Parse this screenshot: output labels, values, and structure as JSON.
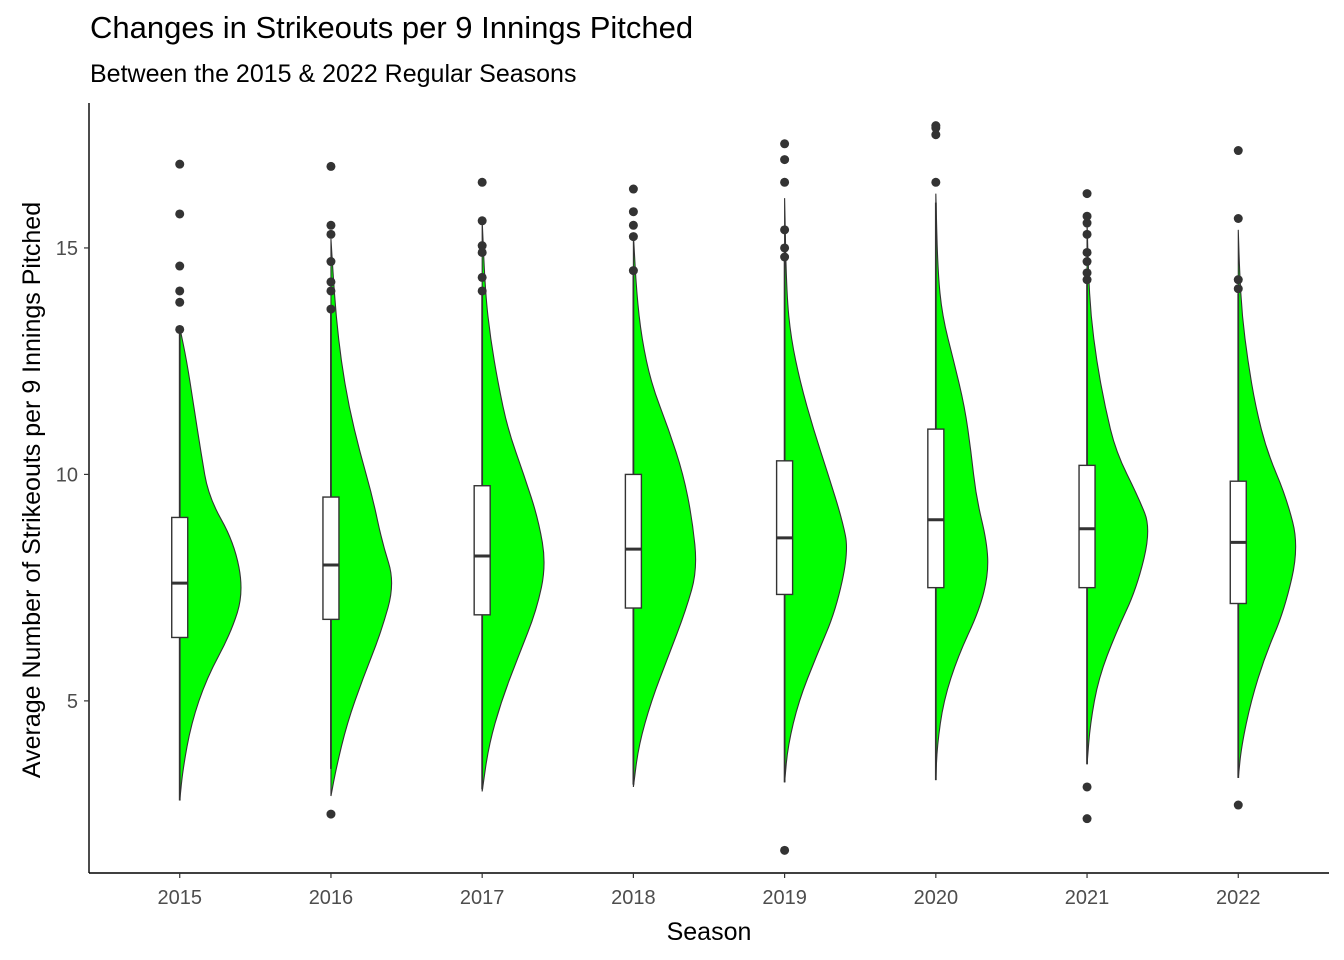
{
  "chart_data": {
    "type": "violin",
    "title": "Changes in Strikeouts per 9 Innings Pitched",
    "subtitle": "Between the 2015 & 2022 Regular Seasons",
    "xlabel": "Season",
    "ylabel": "Average Number of Strikeouts per 9 Innings Pitched",
    "ylim": [
      1.2,
      18.2
    ],
    "y_ticks": [
      5,
      10,
      15
    ],
    "categories": [
      "2015",
      "2016",
      "2017",
      "2018",
      "2019",
      "2020",
      "2021",
      "2022"
    ],
    "fill_color": "#00ff00",
    "box_fill": "#ffffff",
    "grid": false,
    "boxes": [
      {
        "season": "2015",
        "lower": 2.8,
        "q1": 6.4,
        "median": 7.6,
        "q3": 9.05,
        "upper": 13.2,
        "outliers": [
          13.2,
          13.8,
          14.05,
          14.6,
          15.75,
          16.85
        ]
      },
      {
        "season": "2016",
        "lower": 3.5,
        "q1": 6.8,
        "median": 8.0,
        "q3": 9.5,
        "upper": 13.6,
        "outliers": [
          2.5,
          13.65,
          14.05,
          14.25,
          14.7,
          15.3,
          15.5,
          16.8
        ]
      },
      {
        "season": "2017",
        "lower": 3.05,
        "q1": 6.9,
        "median": 8.2,
        "q3": 9.75,
        "upper": 14.0,
        "outliers": [
          14.05,
          14.35,
          14.9,
          15.05,
          15.6,
          16.45
        ]
      },
      {
        "season": "2018",
        "lower": 3.15,
        "q1": 7.05,
        "median": 8.35,
        "q3": 10.0,
        "upper": 14.5,
        "outliers": [
          14.5,
          15.25,
          15.5,
          15.8,
          16.3
        ]
      },
      {
        "season": "2019",
        "lower": 3.2,
        "q1": 7.35,
        "median": 8.6,
        "q3": 10.3,
        "upper": 14.8,
        "outliers": [
          1.7,
          14.8,
          15.0,
          15.4,
          16.45,
          16.95,
          17.3
        ]
      },
      {
        "season": "2020",
        "lower": 3.25,
        "q1": 7.5,
        "median": 9.0,
        "q3": 11.0,
        "upper": 16.0,
        "outliers": [
          16.45,
          17.5,
          17.65,
          17.7
        ]
      },
      {
        "season": "2021",
        "lower": 3.6,
        "q1": 7.5,
        "median": 8.8,
        "q3": 10.2,
        "upper": 14.3,
        "outliers": [
          2.4,
          3.1,
          14.3,
          14.45,
          14.7,
          14.9,
          15.3,
          15.55,
          15.7,
          16.2
        ]
      },
      {
        "season": "2022",
        "lower": 3.3,
        "q1": 7.15,
        "median": 8.5,
        "q3": 9.85,
        "upper": 14.0,
        "outliers": [
          2.7,
          14.1,
          14.3,
          15.65,
          17.15
        ]
      }
    ],
    "violins": [
      {
        "season": "2015",
        "min": 2.8,
        "max": 13.25,
        "peak": 7.4,
        "tails": [
          [
            2.8,
            0.0
          ],
          [
            3.5,
            0.05
          ],
          [
            4.5,
            0.18
          ],
          [
            5.5,
            0.42
          ],
          [
            6.5,
            0.8
          ],
          [
            7.4,
            1.0
          ],
          [
            8.5,
            0.85
          ],
          [
            9.5,
            0.45
          ],
          [
            10.5,
            0.33
          ],
          [
            11.5,
            0.22
          ],
          [
            12.5,
            0.11
          ],
          [
            13.25,
            0.0
          ]
        ]
      },
      {
        "season": "2016",
        "min": 2.9,
        "max": 15.2,
        "peak": 7.6,
        "tails": [
          [
            2.9,
            0.0
          ],
          [
            3.5,
            0.08
          ],
          [
            4.5,
            0.25
          ],
          [
            5.5,
            0.5
          ],
          [
            6.5,
            0.78
          ],
          [
            7.6,
            1.0
          ],
          [
            8.5,
            0.8
          ],
          [
            9.5,
            0.65
          ],
          [
            10.5,
            0.45
          ],
          [
            11.5,
            0.28
          ],
          [
            12.5,
            0.16
          ],
          [
            13.5,
            0.08
          ],
          [
            14.5,
            0.03
          ],
          [
            15.2,
            0.0
          ]
        ]
      },
      {
        "season": "2017",
        "min": 3.0,
        "max": 15.6,
        "peak": 8.0,
        "tails": [
          [
            3.0,
            0.0
          ],
          [
            4.0,
            0.1
          ],
          [
            5.0,
            0.3
          ],
          [
            6.0,
            0.57
          ],
          [
            7.0,
            0.85
          ],
          [
            8.0,
            1.0
          ],
          [
            9.0,
            0.88
          ],
          [
            10.0,
            0.65
          ],
          [
            11.0,
            0.4
          ],
          [
            12.0,
            0.25
          ],
          [
            13.0,
            0.13
          ],
          [
            14.0,
            0.05
          ],
          [
            15.6,
            0.0
          ]
        ]
      },
      {
        "season": "2018",
        "min": 3.1,
        "max": 15.3,
        "peak": 7.9,
        "tails": [
          [
            3.1,
            0.0
          ],
          [
            4.0,
            0.08
          ],
          [
            5.0,
            0.28
          ],
          [
            6.0,
            0.55
          ],
          [
            7.0,
            0.82
          ],
          [
            7.9,
            1.0
          ],
          [
            9.0,
            0.92
          ],
          [
            10.0,
            0.78
          ],
          [
            11.0,
            0.55
          ],
          [
            12.0,
            0.28
          ],
          [
            13.0,
            0.13
          ],
          [
            14.0,
            0.05
          ],
          [
            15.3,
            0.0
          ]
        ]
      },
      {
        "season": "2019",
        "min": 3.2,
        "max": 16.1,
        "peak": 8.3,
        "tails": [
          [
            3.2,
            0.0
          ],
          [
            4.0,
            0.05
          ],
          [
            5.0,
            0.22
          ],
          [
            6.0,
            0.5
          ],
          [
            7.0,
            0.8
          ],
          [
            8.3,
            1.0
          ],
          [
            9.0,
            0.9
          ],
          [
            10.0,
            0.68
          ],
          [
            11.0,
            0.45
          ],
          [
            12.0,
            0.25
          ],
          [
            13.0,
            0.1
          ],
          [
            14.0,
            0.03
          ],
          [
            16.1,
            0.0
          ]
        ]
      },
      {
        "season": "2020",
        "min": 3.25,
        "max": 16.2,
        "peak": 7.8,
        "tails": [
          [
            3.25,
            0.0
          ],
          [
            4.0,
            0.02
          ],
          [
            5.0,
            0.12
          ],
          [
            6.0,
            0.35
          ],
          [
            7.0,
            0.68
          ],
          [
            7.8,
            0.82
          ],
          [
            8.5,
            0.8
          ],
          [
            9.5,
            0.63
          ],
          [
            10.5,
            0.55
          ],
          [
            11.5,
            0.45
          ],
          [
            12.5,
            0.28
          ],
          [
            13.5,
            0.1
          ],
          [
            14.5,
            0.03
          ],
          [
            16.2,
            0.0
          ]
        ]
      },
      {
        "season": "2021",
        "min": 3.6,
        "max": 15.6,
        "peak": 8.8,
        "tails": [
          [
            3.6,
            0.0
          ],
          [
            4.5,
            0.05
          ],
          [
            5.5,
            0.18
          ],
          [
            6.5,
            0.45
          ],
          [
            7.5,
            0.78
          ],
          [
            8.8,
            1.0
          ],
          [
            9.5,
            0.8
          ],
          [
            10.5,
            0.45
          ],
          [
            11.5,
            0.28
          ],
          [
            12.5,
            0.15
          ],
          [
            13.5,
            0.06
          ],
          [
            14.5,
            0.02
          ],
          [
            15.6,
            0.0
          ]
        ]
      },
      {
        "season": "2022",
        "min": 3.3,
        "max": 15.4,
        "peak": 8.4,
        "tails": [
          [
            3.3,
            0.0
          ],
          [
            4.0,
            0.05
          ],
          [
            5.0,
            0.2
          ],
          [
            6.0,
            0.42
          ],
          [
            7.0,
            0.72
          ],
          [
            8.4,
            0.95
          ],
          [
            9.5,
            0.75
          ],
          [
            10.5,
            0.45
          ],
          [
            11.5,
            0.27
          ],
          [
            12.5,
            0.15
          ],
          [
            13.5,
            0.06
          ],
          [
            14.5,
            0.02
          ],
          [
            15.4,
            0.0
          ]
        ]
      }
    ]
  }
}
